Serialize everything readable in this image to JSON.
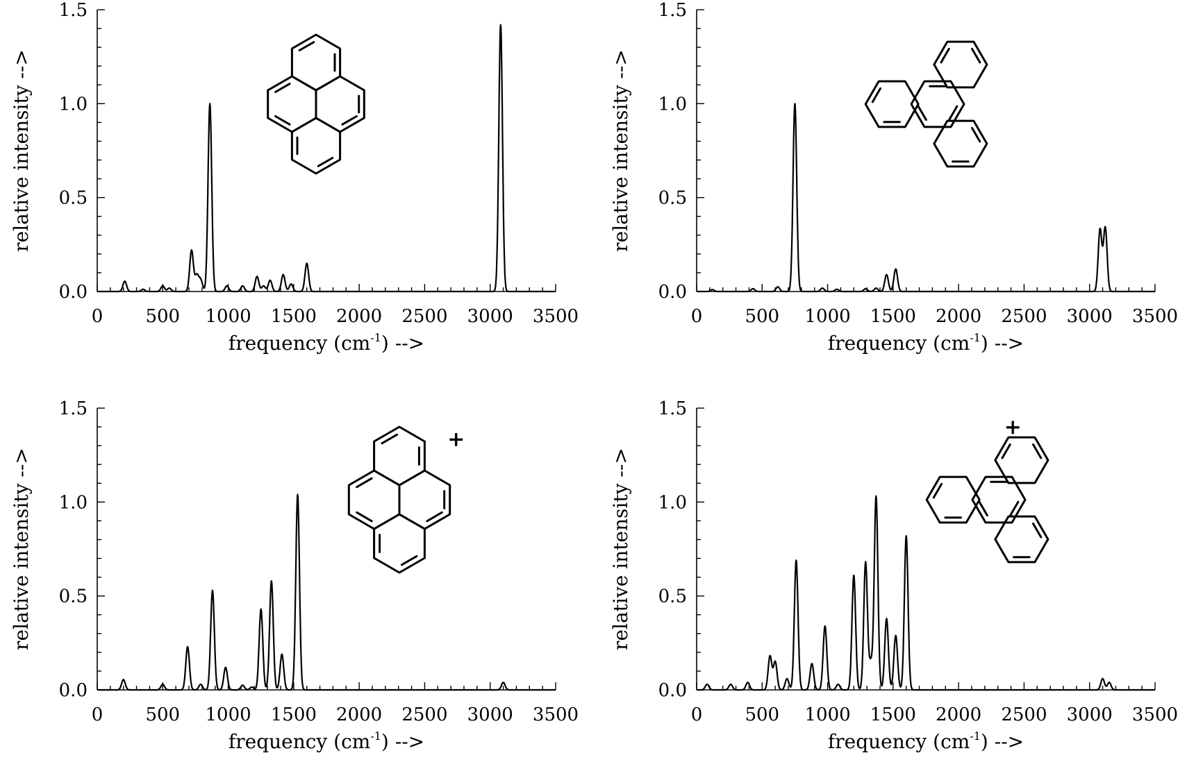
{
  "chart_data": [
    {
      "type": "line",
      "xlabel": "frequency (cm⁻¹) -->",
      "ylabel": "relative intensity -->",
      "xlim": [
        0,
        3500
      ],
      "ylim": [
        0,
        1.5
      ],
      "xticks": [
        "0",
        "500",
        "1000",
        "1500",
        "2000",
        "2500",
        "3000",
        "3500"
      ],
      "yticks": [
        "0.0",
        "0.5",
        "1.0",
        "1.5"
      ],
      "charge": "",
      "peaks": [
        {
          "x": 210,
          "y": 0.055
        },
        {
          "x": 350,
          "y": 0.012
        },
        {
          "x": 500,
          "y": 0.03
        },
        {
          "x": 550,
          "y": 0.018
        },
        {
          "x": 720,
          "y": 0.22
        },
        {
          "x": 760,
          "y": 0.085
        },
        {
          "x": 790,
          "y": 0.06
        },
        {
          "x": 860,
          "y": 1.0
        },
        {
          "x": 990,
          "y": 0.03
        },
        {
          "x": 1110,
          "y": 0.03
        },
        {
          "x": 1220,
          "y": 0.08
        },
        {
          "x": 1270,
          "y": 0.03
        },
        {
          "x": 1320,
          "y": 0.06
        },
        {
          "x": 1420,
          "y": 0.09
        },
        {
          "x": 1480,
          "y": 0.04
        },
        {
          "x": 1600,
          "y": 0.15
        },
        {
          "x": 3080,
          "y": 1.42
        }
      ]
    },
    {
      "type": "line",
      "xlabel": "frequency (cm⁻¹) -->",
      "ylabel": "relative intensity -->",
      "xlim": [
        0,
        3500
      ],
      "ylim": [
        0,
        1.5
      ],
      "xticks": [
        "0",
        "500",
        "1000",
        "1500",
        "2000",
        "2500",
        "3000",
        "3500"
      ],
      "yticks": [
        "0.0",
        "0.5",
        "1.0",
        "1.5"
      ],
      "charge": "",
      "peaks": [
        {
          "x": 120,
          "y": 0.01
        },
        {
          "x": 430,
          "y": 0.015
        },
        {
          "x": 620,
          "y": 0.025
        },
        {
          "x": 750,
          "y": 1.0
        },
        {
          "x": 960,
          "y": 0.018
        },
        {
          "x": 1070,
          "y": 0.012
        },
        {
          "x": 1290,
          "y": 0.015
        },
        {
          "x": 1370,
          "y": 0.018
        },
        {
          "x": 1450,
          "y": 0.09
        },
        {
          "x": 1520,
          "y": 0.12
        },
        {
          "x": 3080,
          "y": 0.33
        },
        {
          "x": 3120,
          "y": 0.34
        }
      ]
    },
    {
      "type": "line",
      "xlabel": "frequency (cm⁻¹) -->",
      "ylabel": "relative intensity -->",
      "xlim": [
        0,
        3500
      ],
      "ylim": [
        0,
        1.5
      ],
      "xticks": [
        "0",
        "500",
        "1000",
        "1500",
        "2000",
        "2500",
        "3000",
        "3500"
      ],
      "yticks": [
        "0.0",
        "0.5",
        "1.0",
        "1.5"
      ],
      "charge": "+",
      "peaks": [
        {
          "x": 200,
          "y": 0.055
        },
        {
          "x": 500,
          "y": 0.03
        },
        {
          "x": 690,
          "y": 0.23
        },
        {
          "x": 790,
          "y": 0.03
        },
        {
          "x": 880,
          "y": 0.53
        },
        {
          "x": 980,
          "y": 0.12
        },
        {
          "x": 1110,
          "y": 0.025
        },
        {
          "x": 1180,
          "y": 0.015
        },
        {
          "x": 1250,
          "y": 0.43
        },
        {
          "x": 1330,
          "y": 0.58
        },
        {
          "x": 1410,
          "y": 0.19
        },
        {
          "x": 1530,
          "y": 1.04
        },
        {
          "x": 3100,
          "y": 0.04
        }
      ]
    },
    {
      "type": "line",
      "xlabel": "frequency (cm⁻¹) -->",
      "ylabel": "relative intensity -->",
      "xlim": [
        0,
        3500
      ],
      "ylim": [
        0,
        1.5
      ],
      "xticks": [
        "0",
        "500",
        "1000",
        "1500",
        "2000",
        "2500",
        "3000",
        "3500"
      ],
      "yticks": [
        "0.0",
        "0.5",
        "1.0",
        "1.5"
      ],
      "charge": "+",
      "peaks": [
        {
          "x": 80,
          "y": 0.03
        },
        {
          "x": 260,
          "y": 0.03
        },
        {
          "x": 390,
          "y": 0.04
        },
        {
          "x": 560,
          "y": 0.18
        },
        {
          "x": 600,
          "y": 0.15
        },
        {
          "x": 690,
          "y": 0.06
        },
        {
          "x": 760,
          "y": 0.69
        },
        {
          "x": 880,
          "y": 0.14
        },
        {
          "x": 980,
          "y": 0.34
        },
        {
          "x": 1080,
          "y": 0.03
        },
        {
          "x": 1200,
          "y": 0.61
        },
        {
          "x": 1290,
          "y": 0.68
        },
        {
          "x": 1330,
          "y": 0.14
        },
        {
          "x": 1370,
          "y": 1.03
        },
        {
          "x": 1450,
          "y": 0.38
        },
        {
          "x": 1520,
          "y": 0.29
        },
        {
          "x": 1600,
          "y": 0.82
        },
        {
          "x": 3100,
          "y": 0.06
        },
        {
          "x": 3150,
          "y": 0.04
        }
      ]
    }
  ]
}
